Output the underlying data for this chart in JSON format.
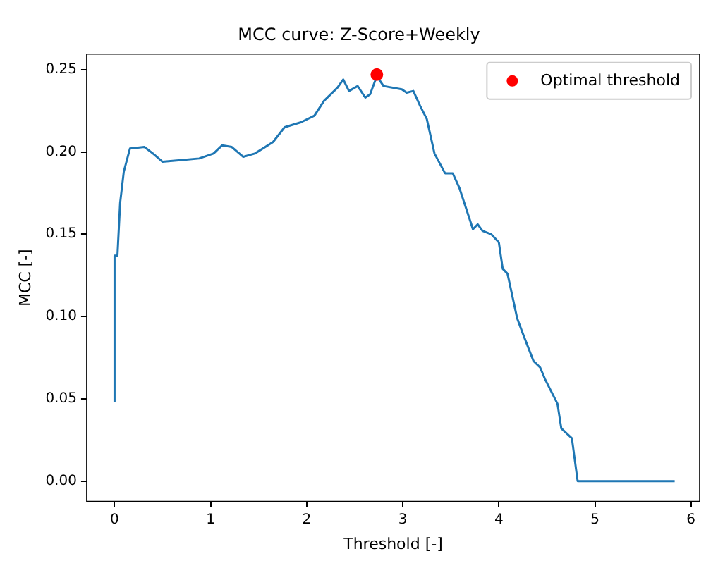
{
  "chart_data": {
    "type": "line",
    "title": "MCC curve: Z-Score+Weekly",
    "xlabel": "Threshold [-]",
    "ylabel": "MCC [-]",
    "xlim": [
      -0.29,
      6.09
    ],
    "xticks": [
      0,
      1,
      2,
      3,
      4,
      5,
      6
    ],
    "ylim": [
      -0.0124,
      0.2594
    ],
    "yticks": [
      {
        "value": 0,
        "label": "0.00"
      },
      0.05,
      {
        "value": 0.1,
        "label": "0.10"
      },
      0.15,
      {
        "value": 0.2,
        "label": "0.20"
      },
      0.25
    ],
    "legend": "top right",
    "grid": false,
    "series": [
      {
        "color": "#1f77b4",
        "x": [
          0,
          0,
          0.03,
          0.058,
          0.096,
          0.16,
          0.31,
          0.4,
          0.5,
          0.69,
          0.88,
          1.03,
          1.12,
          1.22,
          1.34,
          1.46,
          1.65,
          1.77,
          1.94,
          2.08,
          2.18,
          2.32,
          2.38,
          2.44,
          2.53,
          2.61,
          2.66,
          2.73,
          2.8,
          2.99,
          3.04,
          3.11,
          3.18,
          3.25,
          3.33,
          3.44,
          3.52,
          3.59,
          3.73,
          3.78,
          3.83,
          3.92,
          4.0,
          4.04,
          4.09,
          4.19,
          4.26,
          4.36,
          4.43,
          4.48,
          4.61,
          4.65,
          4.76,
          4.82,
          5.83
        ],
        "values": [
          0.048,
          0.137,
          0.137,
          0.169,
          0.188,
          0.202,
          0.203,
          0.199,
          0.194,
          0.195,
          0.196,
          0.199,
          0.204,
          0.203,
          0.197,
          0.199,
          0.206,
          0.215,
          0.218,
          0.222,
          0.231,
          0.239,
          0.244,
          0.237,
          0.24,
          0.233,
          0.235,
          0.246,
          0.24,
          0.238,
          0.236,
          0.237,
          0.228,
          0.22,
          0.199,
          0.187,
          0.187,
          0.178,
          0.153,
          0.156,
          0.152,
          0.15,
          0.145,
          0.129,
          0.126,
          0.099,
          0.088,
          0.073,
          0.069,
          0.062,
          0.047,
          0.032,
          0.026,
          0,
          0
        ]
      },
      {
        "type": "scatter",
        "name": "Optimal threshold",
        "color": "#ff0000",
        "marker": "circle",
        "x": [
          2.73
        ],
        "values": [
          0.247
        ]
      }
    ]
  }
}
